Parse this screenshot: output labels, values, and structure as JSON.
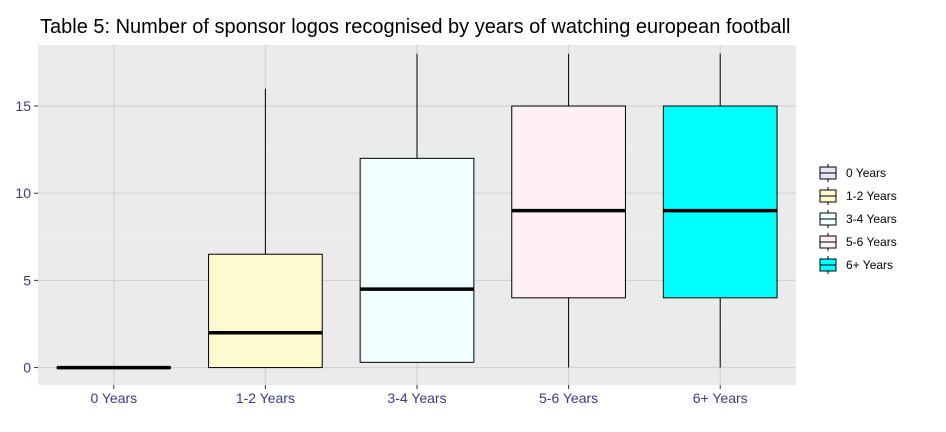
{
  "chart_data": {
    "type": "boxplot",
    "title": "Table 5: Number of sponsor logos recognised by years of watching european football",
    "xlabel": "",
    "ylabel": "",
    "categories": [
      "0 Years",
      "1-2 Years",
      "3-4 Years",
      "5-6 Years",
      "6+ Years"
    ],
    "ylim": [
      -1,
      18.5
    ],
    "yticks": [
      0,
      5,
      10,
      15
    ],
    "grid": true,
    "legend_position": "right",
    "series": [
      {
        "name": "0 Years",
        "min": 0,
        "q1": 0,
        "median": 0,
        "q3": 0,
        "max": 0,
        "color": "#E6E6FA"
      },
      {
        "name": "1-2 Years",
        "min": 0,
        "q1": 0,
        "median": 2,
        "q3": 6.5,
        "max": 16,
        "color": "#FFFACD"
      },
      {
        "name": "3-4 Years",
        "min": 0.3,
        "q1": 0.3,
        "median": 4.5,
        "q3": 12,
        "max": 18,
        "color": "#F0FFFF"
      },
      {
        "name": "5-6 Years",
        "min": 0,
        "q1": 4,
        "median": 9,
        "q3": 15,
        "max": 18,
        "color": "#FFF0F5"
      },
      {
        "name": "6+ Years",
        "min": 0,
        "q1": 4,
        "median": 9,
        "q3": 15,
        "max": 18,
        "color": "#00FFFF"
      }
    ]
  },
  "colors": {
    "panel_background": "#EBEBEB",
    "grid_major": "#D3D3D3",
    "grid_minor": "#F2F2F2",
    "tick_label": "#3A3A8C",
    "box_outline": "#000000"
  }
}
